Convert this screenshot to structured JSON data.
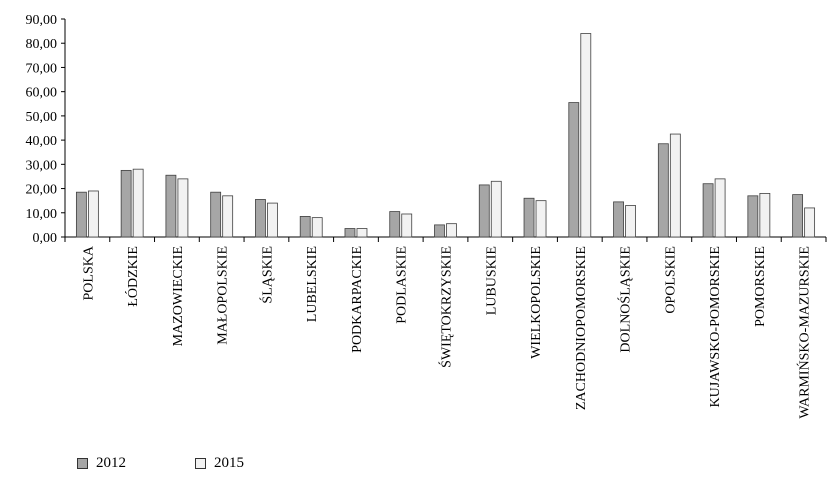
{
  "chart_data": {
    "type": "bar",
    "categories": [
      "POLSKA",
      "ŁÓDZKIE",
      "MAZOWIECKIE",
      "MAŁOPOLSKIE",
      "ŚLĄSKIE",
      "LUBELSKIE",
      "PODKARPACKIE",
      "PODLASKIE",
      "ŚWIĘTOKRZYSKIE",
      "LUBUSKIE",
      "WIELKOPOLSKIE",
      "ZACHODNIOPOMORSKIE",
      "DOLNOŚLĄSKIE",
      "OPOLSKIE",
      "KUJAWSKO-POMORSKIE",
      "POMORSKIE",
      "WARMIŃSKO-MAZURSKIE"
    ],
    "series": [
      {
        "name": "2012",
        "color": "#a6a6a6",
        "values": [
          18.5,
          27.5,
          25.5,
          18.5,
          15.5,
          8.5,
          3.5,
          10.5,
          5.0,
          21.5,
          16.0,
          55.5,
          14.5,
          38.5,
          22.0,
          17.0,
          17.5
        ]
      },
      {
        "name": "2015",
        "color": "#f2f2f2",
        "values": [
          19.0,
          28.0,
          24.0,
          17.0,
          14.0,
          8.0,
          3.5,
          9.5,
          5.5,
          23.0,
          15.0,
          84.0,
          13.0,
          42.5,
          24.0,
          18.0,
          12.0
        ]
      }
    ],
    "yticks": [
      "0,00",
      "10,00",
      "20,00",
      "30,00",
      "40,00",
      "50,00",
      "60,00",
      "70,00",
      "80,00",
      "90,00"
    ],
    "ylim": [
      0,
      90
    ],
    "grid": false,
    "legend_position": "bottom-left",
    "title": "",
    "xlabel": "",
    "ylabel": ""
  }
}
